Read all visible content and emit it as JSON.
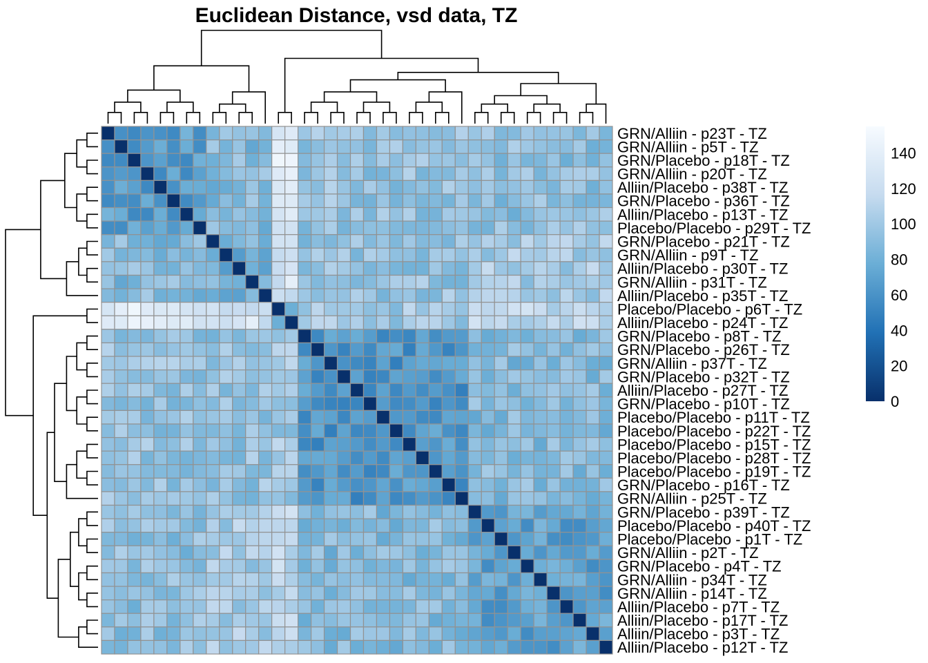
{
  "chart_data": {
    "type": "heatmap",
    "title": "Euclidean Distance, vsd data, TZ",
    "row_labels": [
      "GRN/Alliin - p23T - TZ",
      "GRN/Alliin - p5T - TZ",
      "GRN/Placebo - p18T - TZ",
      "GRN/Alliin - p20T - TZ",
      "Alliin/Placebo - p38T - TZ",
      "GRN/Placebo - p36T - TZ",
      "Alliin/Placebo - p13T - TZ",
      "Placebo/Placebo - p29T - TZ",
      "GRN/Placebo - p21T - TZ",
      "GRN/Alliin - p9T - TZ",
      "Alliin/Placebo - p30T - TZ",
      "GRN/Alliin - p31T - TZ",
      "Alliin/Placebo - p35T - TZ",
      "Placebo/Placebo - p6T - TZ",
      "Alliin/Placebo - p24T - TZ",
      "GRN/Placebo - p8T - TZ",
      "GRN/Placebo - p26T - TZ",
      "GRN/Alliin - p37T - TZ",
      "GRN/Placebo - p32T - TZ",
      "Alliin/Placebo - p27T - TZ",
      "GRN/Placebo - p10T - TZ",
      "Placebo/Placebo - p11T - TZ",
      "Placebo/Placebo - p22T - TZ",
      "Placebo/Placebo - p15T - TZ",
      "Placebo/Placebo - p28T - TZ",
      "Placebo/Placebo - p19T - TZ",
      "GRN/Placebo - p16T - TZ",
      "GRN/Alliin - p25T - TZ",
      "GRN/Placebo - p39T - TZ",
      "Placebo/Placebo - p40T - TZ",
      "Placebo/Placebo - p1T - TZ",
      "GRN/Alliin - p2T - TZ",
      "GRN/Placebo - p4T - TZ",
      "GRN/Alliin - p34T - TZ",
      "GRN/Alliin - p14T - TZ",
      "Alliin/Placebo - p7T - TZ",
      "Alliin/Placebo - p17T - TZ",
      "Alliin/Placebo - p3T - TZ",
      "Alliin/Placebo - p12T - TZ"
    ],
    "groups": [
      [
        0,
        7
      ],
      [
        8,
        12
      ],
      [
        13,
        14
      ],
      [
        15,
        27
      ],
      [
        28,
        38
      ]
    ],
    "group_distances": [
      [
        68,
        88,
        135,
        95,
        92
      ],
      [
        88,
        80,
        128,
        95,
        102
      ],
      [
        135,
        128,
        90,
        100,
        115
      ],
      [
        95,
        95,
        100,
        62,
        88
      ],
      [
        92,
        102,
        115,
        88,
        70
      ]
    ],
    "value_range": [
      0,
      155
    ],
    "colorbar": {
      "ticks": [
        0,
        20,
        40,
        60,
        80,
        100,
        120,
        140
      ],
      "colors": [
        "#08306b",
        "#2171b5",
        "#6baed6",
        "#c6dbef",
        "#f7fbff"
      ]
    },
    "cell_border_color": "#929292",
    "dendrogram_color": "#000000"
  }
}
